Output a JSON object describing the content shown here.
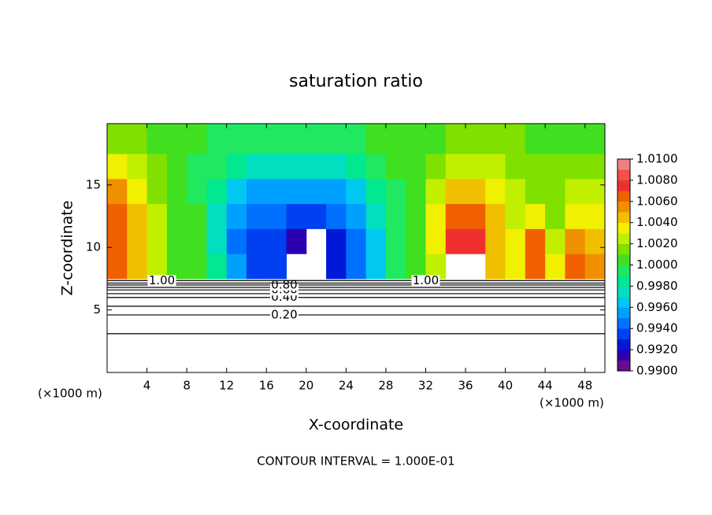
{
  "chart_data": {
    "type": "contour",
    "title": "saturation ratio",
    "x_label": "X-coordinate",
    "y_label": "Z-coordinate",
    "unit_label": "(×1000 m)",
    "footer": "CONTOUR INTERVAL = 1.000E-01",
    "xlim": [
      0,
      50
    ],
    "ylim": [
      0,
      19.9
    ],
    "xticks": [
      4,
      8,
      12,
      16,
      20,
      24,
      28,
      32,
      36,
      40,
      44,
      48
    ],
    "yticks": [
      5,
      10,
      15
    ],
    "x_edges": [
      0,
      2,
      4,
      6,
      8,
      10,
      12,
      14,
      16,
      18,
      20,
      22,
      24,
      26,
      28,
      30,
      32,
      34,
      36,
      38,
      40,
      42,
      44,
      46,
      48,
      50
    ],
    "z_edges": [
      7.5,
      9.5,
      11.5,
      13.5,
      15.5,
      17.5,
      19.9
    ],
    "field": [
      [
        1.006,
        1.004,
        1.002,
        1.0,
        1.0,
        0.998,
        0.995,
        0.993,
        0.993,
        null,
        null,
        0.992,
        0.994,
        0.996,
        0.999,
        1.0,
        1.002,
        null,
        null,
        1.004,
        1.003,
        1.006,
        1.003,
        1.006,
        1.005
      ],
      [
        1.006,
        1.004,
        1.002,
        1.0,
        1.0,
        0.997,
        0.994,
        0.993,
        0.993,
        0.991,
        null,
        0.992,
        0.994,
        0.996,
        0.999,
        1.0,
        1.003,
        1.007,
        1.007,
        1.004,
        1.003,
        1.006,
        1.002,
        1.005,
        1.004
      ],
      [
        1.006,
        1.004,
        1.002,
        1.0,
        1.0,
        0.997,
        0.995,
        0.994,
        0.994,
        0.993,
        0.993,
        0.994,
        0.995,
        0.997,
        0.999,
        1.0,
        1.003,
        1.006,
        1.006,
        1.004,
        1.002,
        1.003,
        1.001,
        1.003,
        1.003
      ],
      [
        1.005,
        1.003,
        1.001,
        1.0,
        0.999,
        0.998,
        0.996,
        0.995,
        0.995,
        0.995,
        0.995,
        0.995,
        0.996,
        0.998,
        0.999,
        1.0,
        1.002,
        1.004,
        1.004,
        1.003,
        1.002,
        1.001,
        1.001,
        1.002,
        1.002
      ],
      [
        1.003,
        1.002,
        1.001,
        1.0,
        0.999,
        0.999,
        0.998,
        0.997,
        0.997,
        0.997,
        0.997,
        0.997,
        0.998,
        0.999,
        1.0,
        1.0,
        1.001,
        1.002,
        1.002,
        1.002,
        1.001,
        1.001,
        1.001,
        1.001,
        1.001
      ],
      [
        1.001,
        1.001,
        1.0,
        1.0,
        1.0,
        0.999,
        0.999,
        0.999,
        0.999,
        0.999,
        0.999,
        0.999,
        0.999,
        1.0,
        1.0,
        1.0,
        1.0,
        1.001,
        1.001,
        1.001,
        1.001,
        1.0,
        1.0,
        1.0,
        1.0
      ]
    ],
    "color_levels": [
      0.99,
      0.991,
      0.992,
      0.993,
      0.994,
      0.995,
      0.996,
      0.997,
      0.998,
      0.999,
      1.0,
      1.001,
      1.002,
      1.003,
      1.004,
      1.005,
      1.006,
      1.007,
      1.008,
      1.009,
      1.01
    ],
    "colors": [
      "#6a0a8c",
      "#2a00b0",
      "#0018d8",
      "#0040f0",
      "#0070ff",
      "#00a0ff",
      "#00c8f0",
      "#00e0c0",
      "#00e890",
      "#20e860",
      "#40e020",
      "#80e000",
      "#c0f000",
      "#f0f000",
      "#f0c000",
      "#f09000",
      "#f06000",
      "#f03030",
      "#f05050",
      "#f08080"
    ],
    "colorbar_ticks": [
      {
        "value": 0.99,
        "label": "0.9900"
      },
      {
        "value": 0.992,
        "label": "0.9920"
      },
      {
        "value": 0.994,
        "label": "0.9940"
      },
      {
        "value": 0.996,
        "label": "0.9960"
      },
      {
        "value": 0.998,
        "label": "0.9980"
      },
      {
        "value": 1.0,
        "label": "1.0000"
      },
      {
        "value": 1.002,
        "label": "1.0020"
      },
      {
        "value": 1.004,
        "label": "1.0040"
      },
      {
        "value": 1.006,
        "label": "1.0060"
      },
      {
        "value": 1.008,
        "label": "1.0080"
      },
      {
        "value": 1.01,
        "label": "1.0100"
      }
    ],
    "contour_lines": [
      {
        "level": 0.1,
        "z": 3.1
      },
      {
        "level": 0.2,
        "z": 4.6,
        "label": "0.20"
      },
      {
        "level": 0.3,
        "z": 5.3
      },
      {
        "level": 0.4,
        "z": 6.0,
        "label": "0.40"
      },
      {
        "level": 0.5,
        "z": 6.3
      },
      {
        "level": 0.6,
        "z": 6.6,
        "label": "0.60"
      },
      {
        "level": 0.7,
        "z": 6.8
      },
      {
        "level": 0.8,
        "z": 7.0,
        "label": "0.80"
      },
      {
        "level": 0.9,
        "z": 7.15
      },
      {
        "level": 1.0,
        "z": 7.35,
        "label": "1.00"
      }
    ]
  }
}
